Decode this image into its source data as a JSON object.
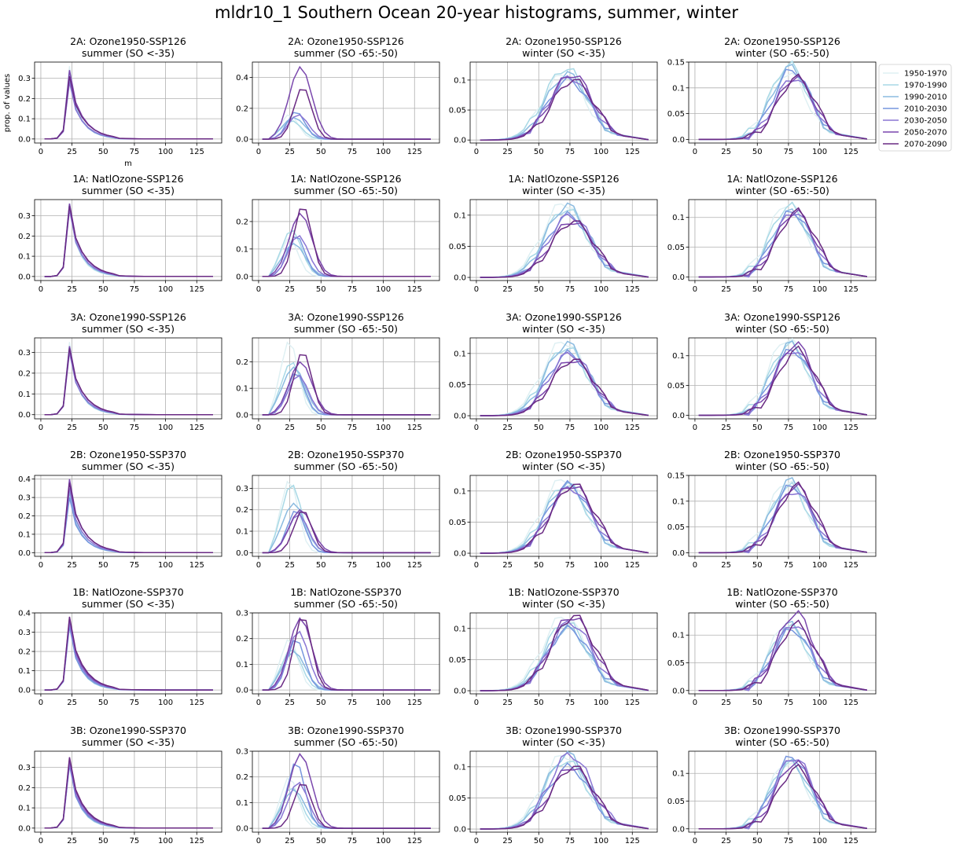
{
  "figure": {
    "title": "mldr10_1 Southern Ocean 20-year histograms, summer, winter"
  },
  "chart_data": {
    "type": "line",
    "xlabel": "m",
    "ylabel": "prop. of values",
    "xlim": [
      -5,
      145
    ],
    "x_ticks": [
      0,
      25,
      50,
      75,
      100,
      125
    ],
    "grid": true,
    "legend_placement": "right of top-right panel",
    "series_names": [
      "1950-1970",
      "1970-1990",
      "1990-2010",
      "2010-2030",
      "2030-2050",
      "2050-2070",
      "2070-2090"
    ],
    "series_colors": [
      "#dff0f3",
      "#a9d9e6",
      "#8bbbe0",
      "#7796de",
      "#8a76d4",
      "#7a47ad",
      "#6a2a83"
    ],
    "rows": [
      {
        "scenario": "2A: Ozone1950-SSP126",
        "y_ticks": [
          [
            0.0,
            0.1,
            0.2,
            0.3
          ],
          [
            0.0,
            0.2,
            0.4
          ],
          [
            0.0,
            0.05,
            0.1
          ],
          [
            0.0,
            0.05,
            0.1,
            0.15
          ]
        ]
      },
      {
        "scenario": "1A: NatlOzone-SSP126",
        "y_ticks": [
          [
            0.0,
            0.1,
            0.2,
            0.3
          ],
          [
            0.0,
            0.1,
            0.2
          ],
          [
            0.0,
            0.05,
            0.1
          ],
          [
            0.0,
            0.05,
            0.1
          ]
        ]
      },
      {
        "scenario": "3A: Ozone1990-SSP126",
        "y_ticks": [
          [
            0.0,
            0.1,
            0.2,
            0.3
          ],
          [
            0.0,
            0.1,
            0.2
          ],
          [
            0.0,
            0.05,
            0.1
          ],
          [
            0.0,
            0.05,
            0.1
          ]
        ]
      },
      {
        "scenario": "2B: Ozone1950-SSP370",
        "y_ticks": [
          [
            0.0,
            0.1,
            0.2,
            0.3,
            0.4
          ],
          [
            0.0,
            0.1,
            0.2,
            0.3
          ],
          [
            0.0,
            0.05,
            0.1
          ],
          [
            0.0,
            0.05,
            0.1,
            0.15
          ]
        ]
      },
      {
        "scenario": "1B: NatlOzone-SSP370",
        "y_ticks": [
          [
            0.0,
            0.1,
            0.2,
            0.3,
            0.4
          ],
          [
            0.0,
            0.1,
            0.2,
            0.3
          ],
          [
            0.0,
            0.05,
            0.1
          ],
          [
            0.0,
            0.05,
            0.1
          ]
        ]
      },
      {
        "scenario": "3B: Ozone1990-SSP370",
        "y_ticks": [
          [
            0.0,
            0.1,
            0.2,
            0.3
          ],
          [
            0.0,
            0.1,
            0.2,
            0.3
          ],
          [
            0.0,
            0.05,
            0.1
          ],
          [
            0.0,
            0.05,
            0.1
          ]
        ]
      }
    ],
    "columns": [
      {
        "subtitle": "summer (SO <-35)",
        "ylim": [
          -0.02,
          0.38
        ]
      },
      {
        "subtitle": "summer (SO -65:-50)",
        "ylim": [
          -0.02,
          0.3
        ]
      },
      {
        "subtitle": "winter (SO <-35)",
        "ylim": [
          -0.005,
          0.125
        ]
      },
      {
        "subtitle": "winter (SO -65:-50)",
        "ylim": [
          -0.006,
          0.15
        ]
      }
    ],
    "row_ylims": [
      [
        [
          -0.02,
          0.38
        ],
        [
          -0.025,
          0.5
        ],
        [
          -0.005,
          0.13
        ],
        [
          -0.007,
          0.15
        ]
      ],
      [
        [
          -0.02,
          0.38
        ],
        [
          -0.015,
          0.28
        ],
        [
          -0.005,
          0.125
        ],
        [
          -0.006,
          0.13
        ]
      ],
      [
        [
          -0.02,
          0.37
        ],
        [
          -0.015,
          0.29
        ],
        [
          -0.005,
          0.125
        ],
        [
          -0.006,
          0.13
        ]
      ],
      [
        [
          -0.02,
          0.42
        ],
        [
          -0.017,
          0.36
        ],
        [
          -0.005,
          0.125
        ],
        [
          -0.007,
          0.15
        ]
      ],
      [
        [
          -0.02,
          0.4
        ],
        [
          -0.015,
          0.3
        ],
        [
          -0.005,
          0.125
        ],
        [
          -0.006,
          0.14
        ]
      ],
      [
        [
          -0.02,
          0.38
        ],
        [
          -0.015,
          0.3
        ],
        [
          -0.005,
          0.125
        ],
        [
          -0.006,
          0.14
        ]
      ]
    ],
    "x": [
      3,
      8,
      13,
      18,
      23,
      28,
      33,
      38,
      43,
      48,
      53,
      58,
      63,
      68,
      73,
      78,
      83,
      88,
      93,
      98,
      103,
      108,
      113,
      118,
      123,
      128,
      133,
      138
    ],
    "profile_templates": {
      "summer_all": {
        "peak_x": 21,
        "peak": 0.32,
        "tail_decay": 8
      },
      "summer_south": {
        "peak_x": 32,
        "peak": 0.22,
        "spread": 8
      },
      "winter_all": {
        "peak_x": 74,
        "peak": 0.105,
        "spread": 16
      },
      "winter_south": {
        "peak_x": 78,
        "peak": 0.12,
        "spread": 15
      }
    },
    "panels_peaks": [
      [
        [
          0.36,
          0.33,
          0.3,
          0.29,
          0.28,
          0.34,
          0.31
        ],
        [
          0.16,
          0.12,
          0.14,
          0.18,
          0.16,
          0.47,
          0.34
        ],
        [
          0.11,
          0.12,
          0.11,
          0.1,
          0.105,
          0.11,
          0.1
        ],
        [
          0.13,
          0.145,
          0.14,
          0.135,
          0.12,
          0.12,
          0.12
        ]
      ],
      [
        [
          0.36,
          0.35,
          0.36,
          0.34,
          0.33,
          0.36,
          0.35
        ],
        [
          0.14,
          0.17,
          0.12,
          0.15,
          0.15,
          0.23,
          0.26
        ],
        [
          0.12,
          0.11,
          0.115,
          0.1,
          0.1,
          0.09,
          0.09
        ],
        [
          0.125,
          0.12,
          0.11,
          0.11,
          0.11,
          0.11,
          0.11
        ]
      ],
      [
        [
          0.35,
          0.33,
          0.32,
          0.31,
          0.3,
          0.33,
          0.32
        ],
        [
          0.28,
          0.2,
          0.18,
          0.16,
          0.15,
          0.2,
          0.24
        ],
        [
          0.12,
          0.11,
          0.115,
          0.1,
          0.1,
          0.09,
          0.09
        ],
        [
          0.13,
          0.12,
          0.12,
          0.11,
          0.11,
          0.12,
          0.11
        ]
      ],
      [
        [
          0.39,
          0.35,
          0.33,
          0.3,
          0.35,
          0.4,
          0.38
        ],
        [
          0.34,
          0.32,
          0.23,
          0.2,
          0.18,
          0.2,
          0.2
        ],
        [
          0.12,
          0.11,
          0.11,
          0.11,
          0.105,
          0.11,
          0.11
        ],
        [
          0.14,
          0.13,
          0.14,
          0.13,
          0.12,
          0.13,
          0.13
        ]
      ],
      [
        [
          0.38,
          0.35,
          0.34,
          0.33,
          0.35,
          0.37,
          0.38
        ],
        [
          0.2,
          0.16,
          0.15,
          0.2,
          0.23,
          0.28,
          0.29
        ],
        [
          0.12,
          0.11,
          0.1,
          0.1,
          0.11,
          0.12,
          0.12
        ],
        [
          0.12,
          0.115,
          0.12,
          0.11,
          0.12,
          0.14,
          0.12
        ]
      ],
      [
        [
          0.35,
          0.33,
          0.32,
          0.31,
          0.32,
          0.34,
          0.35
        ],
        [
          0.2,
          0.16,
          0.15,
          0.26,
          0.18,
          0.29,
          0.18
        ],
        [
          0.12,
          0.11,
          0.12,
          0.1,
          0.12,
          0.1,
          0.1
        ],
        [
          0.12,
          0.12,
          0.12,
          0.13,
          0.13,
          0.12,
          0.11
        ]
      ]
    ]
  }
}
